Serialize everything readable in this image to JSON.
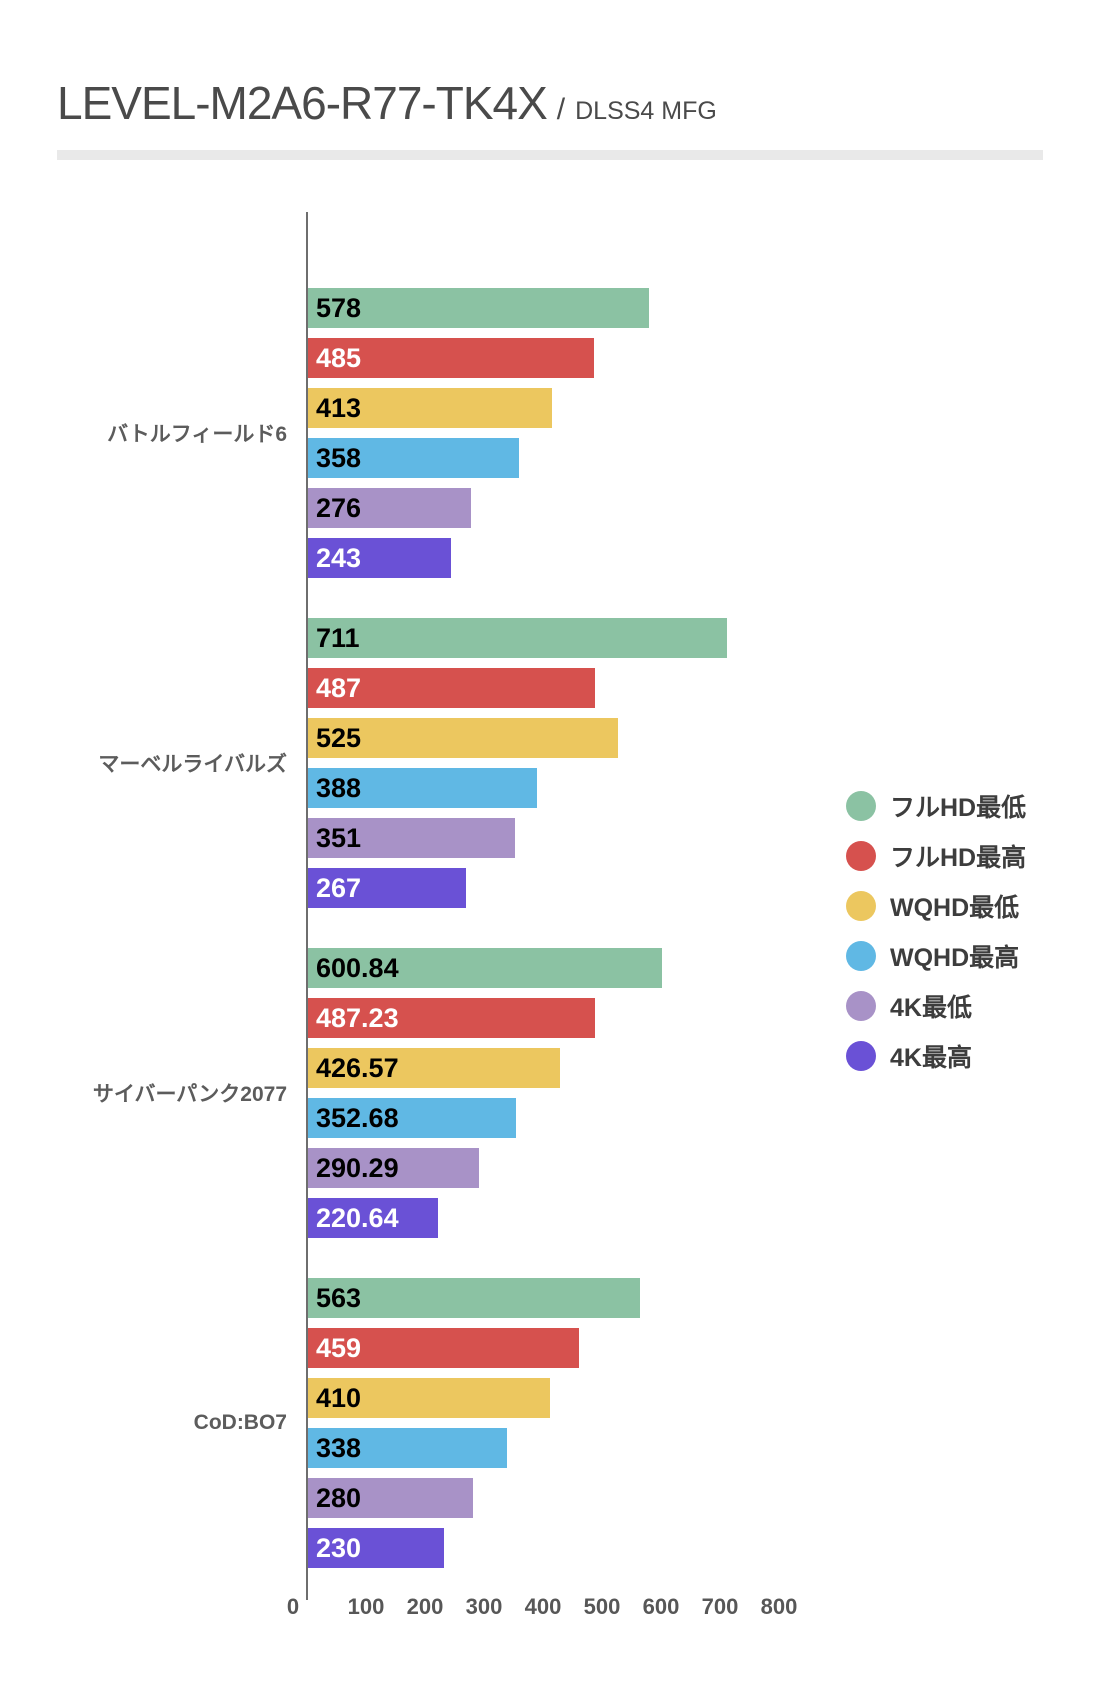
{
  "header": {
    "title": "LEVEL-M2A6-R77-TK4X",
    "separator": "/",
    "subtitle": "DLSS4 MFG"
  },
  "chart_data": {
    "type": "bar",
    "orientation": "horizontal",
    "title": "LEVEL-M2A6-R77-TK4X / DLSS4 MFG",
    "categories": [
      "バトルフィールド6",
      "マーベルライバルズ",
      "サイバーパンク2077",
      "CoD:BO7"
    ],
    "series": [
      {
        "name": "フルHD最低",
        "color": "#8bc2a3",
        "label_color": "#000000",
        "values": [
          578,
          711,
          600.84,
          563
        ]
      },
      {
        "name": "フルHD最高",
        "color": "#d6514e",
        "label_color": "#ffffff",
        "values": [
          485,
          487,
          487.23,
          459
        ]
      },
      {
        "name": "WQHD最低",
        "color": "#ecc75f",
        "label_color": "#000000",
        "values": [
          413,
          525,
          426.57,
          410
        ]
      },
      {
        "name": "WQHD最高",
        "color": "#60b8e4",
        "label_color": "#000000",
        "values": [
          358,
          388,
          352.68,
          338
        ]
      },
      {
        "name": "4K最低",
        "color": "#a892c7",
        "label_color": "#000000",
        "values": [
          276,
          351,
          290.29,
          280
        ]
      },
      {
        "name": "4K最高",
        "color": "#6a51d6",
        "label_color": "#ffffff",
        "values": [
          243,
          267,
          220.64,
          230
        ]
      }
    ],
    "xlim": [
      0,
      800
    ],
    "x_ticks": [
      "0",
      "100",
      "200",
      "300",
      "400",
      "500",
      "600",
      "700",
      "800"
    ],
    "grid": false,
    "legend_position": "right",
    "axis_color": "#6e6e6e",
    "divider_color": "#e9e9e9",
    "title_color": "#4a4a4a"
  }
}
